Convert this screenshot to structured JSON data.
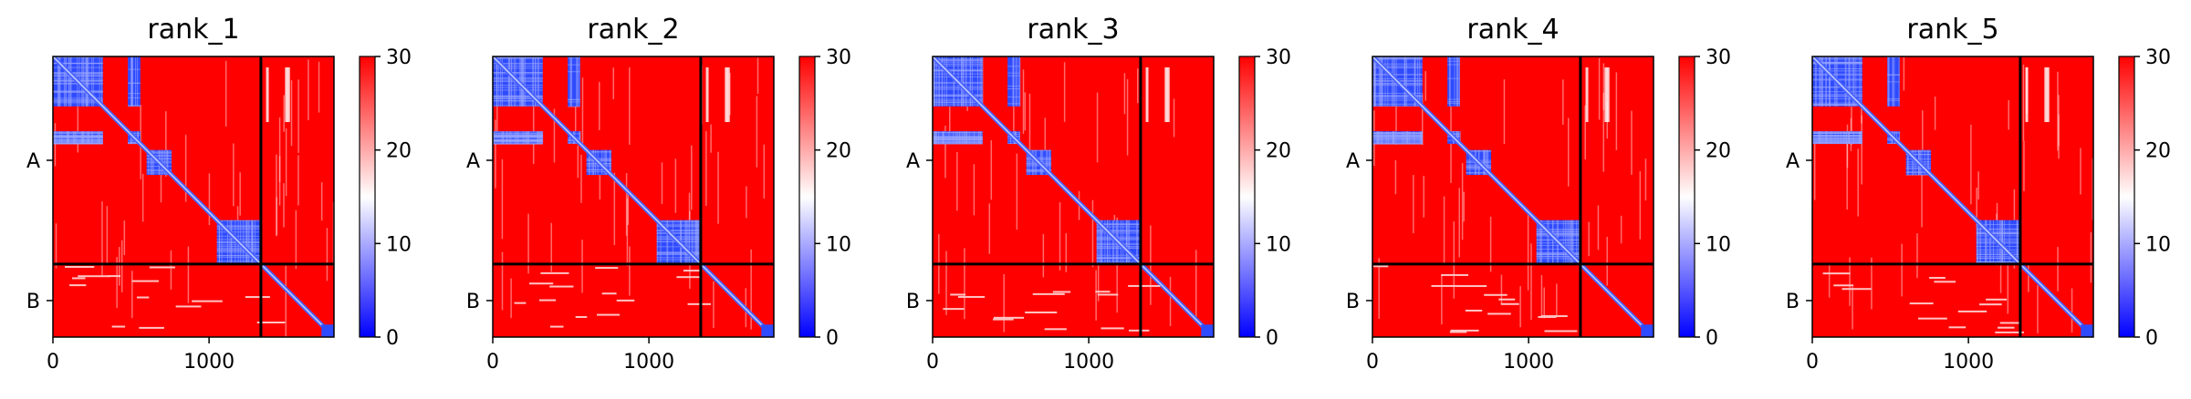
{
  "chart_data": {
    "type": "heatmap",
    "colormap": {
      "name": "bwr",
      "low": "#0000ff",
      "mid": "#ffffff",
      "high": "#ff0000",
      "range": [
        0,
        30
      ],
      "ticks": [
        "0",
        "10",
        "20",
        "30"
      ]
    },
    "xlim": [
      0,
      1800
    ],
    "x_ticks": [
      "0",
      "1000"
    ],
    "y_ticks": [
      "A",
      "B"
    ],
    "chain_A_length": 1332,
    "total_length": 1800,
    "panels": [
      {
        "title": "rank_1"
      },
      {
        "title": "rank_2"
      },
      {
        "title": "rank_3"
      },
      {
        "title": "rank_4"
      },
      {
        "title": "rank_5"
      }
    ]
  }
}
